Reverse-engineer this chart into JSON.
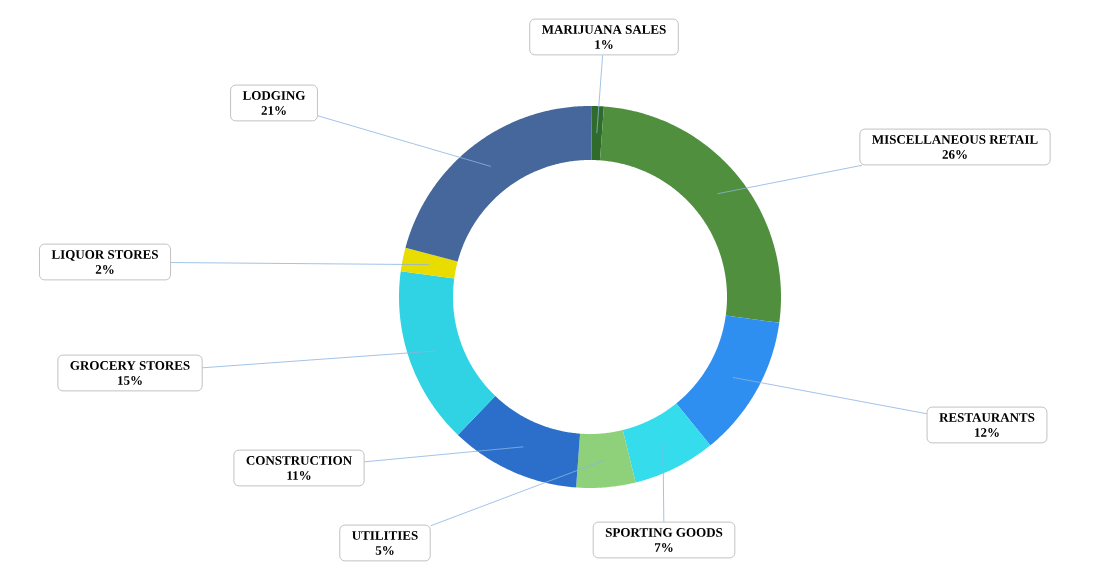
{
  "chart_data": {
    "type": "donut",
    "categories": [
      "MARIJUANA SALES",
      "MISCELLANEOUS RETAIL",
      "RESTAURANTS",
      "SPORTING GOODS",
      "UTILITIES",
      "CONSTRUCTION",
      "GROCERY STORES",
      "LIQUOR STORES",
      "LODGING"
    ],
    "values": [
      1,
      26,
      12,
      7,
      5,
      11,
      15,
      2,
      21
    ],
    "value_labels": [
      "1%",
      "26%",
      "12%",
      "7%",
      "5%",
      "11%",
      "15%",
      "2%",
      "21%"
    ],
    "colors": [
      "#2f6b2a",
      "#4f8f3e",
      "#2f8ff0",
      "#35dcec",
      "#8fd07a",
      "#2b6fcb",
      "#2fd3e3",
      "#e8dc00",
      "#45679c"
    ]
  }
}
